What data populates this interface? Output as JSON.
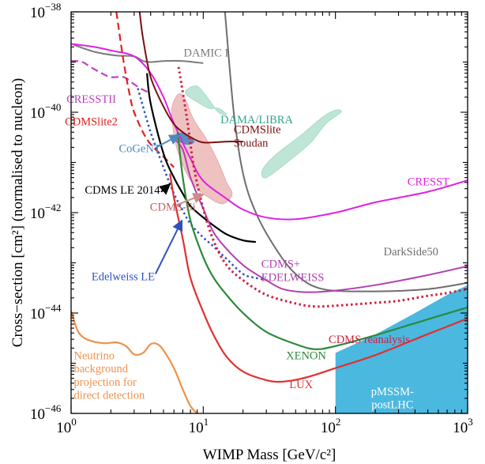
{
  "chart_data": {
    "type": "line",
    "xlabel": "WIMP Mass [GeV/c²]",
    "ylabel": "Cross−section [cm²] (normalised to nucleon)",
    "xscale": "log",
    "yscale": "log",
    "xlim": [
      1,
      1000
    ],
    "ylim": [
      1e-46,
      1e-38
    ],
    "xticks": [
      {
        "value": 1,
        "label": "10",
        "exp": "0"
      },
      {
        "value": 10,
        "label": "10",
        "exp": "1"
      },
      {
        "value": 100,
        "label": "10",
        "exp": "2"
      },
      {
        "value": 1000,
        "label": "10",
        "exp": "3"
      }
    ],
    "yticks": [
      {
        "value": 1e-46,
        "label": "10",
        "exp": "−46"
      },
      {
        "value": 1e-44,
        "label": "10",
        "exp": "−44"
      },
      {
        "value": 1e-42,
        "label": "10",
        "exp": "−42"
      },
      {
        "value": 1e-40,
        "label": "10",
        "exp": "−40"
      },
      {
        "value": 1e-38,
        "label": "10",
        "exp": "−38"
      }
    ],
    "grid": false,
    "series": [
      {
        "name": "DAMIC I",
        "color": "#7a7a7a",
        "style": "solid",
        "width": 2,
        "label_x": 10.5,
        "label_y": 1.3e-39,
        "label_anchor": "middle",
        "points": [
          [
            1.05,
            2.2e-39
          ],
          [
            1.5,
            1.6e-39
          ],
          [
            2.2,
            1.35e-39
          ],
          [
            3.0,
            1.3e-39
          ],
          [
            3.5,
            1.05e-39
          ],
          [
            4.0,
            1e-39
          ],
          [
            5,
            1.05e-39
          ],
          [
            7,
            1.05e-39
          ],
          [
            10,
            9.5e-40
          ]
        ]
      },
      {
        "name": "DarkSide50",
        "color": "#6e6e6e",
        "style": "solid",
        "width": 2,
        "label_x": 600,
        "label_y": 1.4e-43,
        "label_anchor": "end",
        "points": [
          [
            14.6,
            1e-38
          ],
          [
            17,
            1e-40
          ],
          [
            20,
            6e-42
          ],
          [
            25,
            1e-42
          ],
          [
            35,
            2e-43
          ],
          [
            50,
            6e-44
          ],
          [
            80,
            3e-44
          ],
          [
            200,
            2.7e-44
          ],
          [
            500,
            3e-44
          ],
          [
            1000,
            4e-44
          ]
        ]
      },
      {
        "name": "CRESST",
        "color": "#e020e0",
        "style": "solid",
        "width": 2,
        "label_x": 505,
        "label_y": 3.5e-42,
        "label_anchor": "middle",
        "points": [
          [
            1,
            2.3e-39
          ],
          [
            1.5,
            2e-39
          ],
          [
            2,
            1.7e-39
          ],
          [
            3,
            1.3e-39
          ],
          [
            4,
            6e-40
          ],
          [
            5,
            2e-40
          ],
          [
            6,
            6e-41
          ],
          [
            8,
            1.2e-41
          ],
          [
            10,
            4.3e-42
          ],
          [
            15,
            1.9e-42
          ],
          [
            20,
            1.15e-42
          ],
          [
            30,
            8e-43
          ],
          [
            50,
            7.4e-43
          ],
          [
            100,
            1e-42
          ],
          [
            200,
            1.6e-42
          ],
          [
            500,
            2.6e-42
          ],
          [
            1000,
            4.4e-42
          ]
        ]
      },
      {
        "name": "CRESSTII",
        "color": "#c040c0",
        "style": "dashed",
        "width": 2.2,
        "label_x": 1.42,
        "label_y": 1.55e-40,
        "label_anchor": "middle",
        "points": [
          [
            1,
            1.05e-39
          ],
          [
            1.2,
            1.02e-39
          ],
          [
            1.4,
            8e-40
          ],
          [
            1.7,
            6e-40
          ],
          [
            2,
            5e-40
          ],
          [
            2.5,
            5e-40
          ],
          [
            3,
            3.6e-40
          ],
          [
            3.5,
            2.8e-40
          ],
          [
            4,
            2.4e-40
          ]
        ]
      },
      {
        "name": "CDMSlite2",
        "color": "#e02020",
        "style": "dashed",
        "width": 2.2,
        "label_x": 1.42,
        "label_y": 5.5e-41,
        "label_anchor": "middle",
        "points": [
          [
            2.2,
            1e-38
          ],
          [
            2.5,
            1e-39
          ],
          [
            2.8,
            2e-40
          ],
          [
            3,
            1e-40
          ],
          [
            3.5,
            4e-41
          ],
          [
            4,
            2.3e-41
          ],
          [
            5,
            1.3e-41
          ],
          [
            6,
            8e-42
          ]
        ]
      },
      {
        "name": "CDMSlite Soudan",
        "color": "#7a1010",
        "style": "solid",
        "width": 2,
        "label_x": 17,
        "label_y": 3.8e-41,
        "label_anchor": "start",
        "label_line2": "Soudan",
        "points": [
          [
            3.3,
            1e-38
          ],
          [
            3.5,
            3e-39
          ],
          [
            4,
            5e-40
          ],
          [
            5,
            1.3e-40
          ],
          [
            6,
            5.8e-41
          ],
          [
            7,
            4e-41
          ],
          [
            8,
            3.2e-41
          ],
          [
            10,
            2.5e-41
          ],
          [
            15,
            2.6e-41
          ],
          [
            20,
            2.6e-41
          ]
        ]
      },
      {
        "name": "CDMS LE 2014",
        "color": "#000000",
        "style": "solid",
        "width": 2.2,
        "label_x": 4.7,
        "label_y": 2.4e-42,
        "label_anchor": "end",
        "points": [
          [
            3.75,
            6e-40
          ],
          [
            4,
            1.5e-40
          ],
          [
            5,
            1.5e-41
          ],
          [
            6,
            5e-42
          ],
          [
            7,
            2.4e-42
          ],
          [
            8,
            1.35e-42
          ],
          [
            10,
            8e-43
          ],
          [
            12,
            5.5e-43
          ],
          [
            15,
            3.7e-43
          ],
          [
            20,
            2.8e-43
          ],
          [
            25,
            2.6e-43
          ]
        ]
      },
      {
        "name": "Edelweiss LE",
        "color": "#3050c0",
        "style": "dotted",
        "width": 2.5,
        "label_x": 4.3,
        "label_y": 4.5e-44,
        "label_anchor": "end",
        "points": [
          [
            3.2,
            3e-40
          ],
          [
            4,
            4e-41
          ],
          [
            5,
            8e-42
          ],
          [
            6,
            2.4e-42
          ],
          [
            7,
            1.1e-42
          ],
          [
            8,
            6e-43
          ],
          [
            10,
            3.2e-43
          ],
          [
            12,
            2.1e-43
          ],
          [
            15,
            1.2e-43
          ],
          [
            20,
            6e-44
          ],
          [
            25,
            5e-44
          ],
          [
            30,
            4.6e-44
          ]
        ]
      },
      {
        "name": "CDMS+ EDELWEISS",
        "color": "#b040b0",
        "style": "solid",
        "width": 2,
        "label_x": 27.5,
        "label_y": 8e-44,
        "label_anchor": "start",
        "label_line2": "EDELWEISS",
        "points": [
          [
            6,
            3e-41
          ],
          [
            7,
            1.8e-41
          ],
          [
            8,
            5e-42
          ],
          [
            10,
            1.2e-42
          ],
          [
            12,
            4e-43
          ],
          [
            15,
            1.9e-43
          ],
          [
            20,
            9e-44
          ],
          [
            25,
            6e-44
          ],
          [
            30,
            4.5e-44
          ],
          [
            40,
            3e-44
          ],
          [
            60,
            2.6e-44
          ],
          [
            100,
            2.8e-44
          ],
          [
            200,
            3.6e-44
          ],
          [
            500,
            5.7e-44
          ],
          [
            1000,
            8.6e-44
          ]
        ]
      },
      {
        "name": "CDMS reanalysis",
        "color": "#d02040",
        "style": "dotted",
        "width": 3,
        "label_x": 180,
        "label_y": 2.5e-45,
        "label_anchor": "middle",
        "points": [
          [
            6.5,
            8e-40
          ],
          [
            7.5,
            8e-41
          ],
          [
            8.5,
            8e-42
          ],
          [
            10,
            1.2e-42
          ],
          [
            12,
            2.7e-43
          ],
          [
            15,
            9e-44
          ],
          [
            20,
            4.5e-44
          ],
          [
            30,
            2.3e-44
          ],
          [
            50,
            1.55e-44
          ],
          [
            70,
            1.35e-44
          ],
          [
            100,
            1.4e-44
          ],
          [
            200,
            1.6e-44
          ],
          [
            300,
            1.75e-44
          ],
          [
            500,
            2.2e-44
          ],
          [
            700,
            2.5e-44
          ],
          [
            1000,
            3e-44
          ]
        ]
      },
      {
        "name": "XENON",
        "color": "#2a8a3a",
        "style": "solid",
        "width": 2.2,
        "label_x": 60,
        "label_y": 1.2e-45,
        "label_anchor": "middle",
        "points": [
          [
            6.4,
            4e-41
          ],
          [
            7,
            5e-42
          ],
          [
            8,
            7e-43
          ],
          [
            10,
            1.3e-43
          ],
          [
            12,
            5e-44
          ],
          [
            15,
            2.3e-44
          ],
          [
            20,
            1e-44
          ],
          [
            30,
            4.2e-45
          ],
          [
            50,
            2.4e-45
          ],
          [
            70,
            1.9e-45
          ],
          [
            100,
            2.2e-45
          ],
          [
            200,
            3.6e-45
          ],
          [
            500,
            7.5e-45
          ],
          [
            1000,
            1.3e-44
          ]
        ]
      },
      {
        "name": "LUX",
        "color": "#e03030",
        "style": "solid",
        "width": 2.2,
        "label_x": 55,
        "label_y": 3.2e-46,
        "label_anchor": "middle",
        "points": [
          [
            5.6,
            6e-42
          ],
          [
            6,
            2e-42
          ],
          [
            7,
            3e-43
          ],
          [
            8,
            5e-44
          ],
          [
            10,
            1.05e-44
          ],
          [
            12,
            3.6e-45
          ],
          [
            15,
            1.35e-45
          ],
          [
            20,
            6.8e-46
          ],
          [
            30,
            4.6e-46
          ],
          [
            40,
            4.3e-46
          ],
          [
            60,
            5.2e-46
          ],
          [
            100,
            8e-46
          ],
          [
            200,
            1.45e-45
          ],
          [
            500,
            3.8e-45
          ],
          [
            1000,
            7.8e-45
          ]
        ]
      },
      {
        "name": "Neutrino background projection for direct detection",
        "color": "#f0904a",
        "style": "solid",
        "width": 2.2,
        "label_x": 1.05,
        "label_y": 1.2e-45,
        "label_anchor": "start",
        "label_lines": [
          "Neutrino",
          "background",
          "projection for",
          "direct detection"
        ],
        "points": [
          [
            1,
            1.1e-44
          ],
          [
            1.1,
            5e-45
          ],
          [
            1.2,
            3.5e-45
          ],
          [
            1.4,
            2.8e-45
          ],
          [
            1.8,
            2.5e-45
          ],
          [
            2.2,
            2.6e-45
          ],
          [
            2.6,
            2.2e-45
          ],
          [
            3,
            1.5e-45
          ],
          [
            3.5,
            1.6e-45
          ],
          [
            4,
            2.4e-45
          ],
          [
            4.5,
            2.4e-45
          ],
          [
            5,
            1.8e-45
          ],
          [
            6,
            8e-46
          ],
          [
            7,
            3e-46
          ],
          [
            8,
            1.4e-46
          ],
          [
            9,
            1e-46
          ]
        ]
      }
    ],
    "regions": [
      {
        "name": "DAMA/LIBRA",
        "color": "#a8dcc8",
        "opacity": 0.75,
        "label_color": "#2fa58a",
        "label_x": 13.5,
        "label_y": 6e-41,
        "polygon": [
          [
            7.5,
            2.8e-40
          ],
          [
            9,
            3.3e-40
          ],
          [
            11,
            1.8e-40
          ],
          [
            13,
            1e-40
          ],
          [
            15,
            9e-41
          ],
          [
            13,
            1.2e-40
          ],
          [
            11,
            1.2e-40
          ],
          [
            9,
            1.6e-40
          ],
          [
            7.5,
            2.2e-40
          ]
        ],
        "polygon2": [
          [
            30,
            5e-42
          ],
          [
            45,
            1.1e-41
          ],
          [
            65,
            2.5e-41
          ],
          [
            85,
            6e-41
          ],
          [
            110,
            1e-40
          ],
          [
            100,
            1.1e-40
          ],
          [
            80,
            8e-41
          ],
          [
            55,
            3.5e-41
          ],
          [
            35,
            1.4e-41
          ],
          [
            28,
            7e-42
          ]
        ]
      },
      {
        "name": "CDMS-Si",
        "color": "#e8a8a8",
        "opacity": 0.7,
        "label_color": "#c06060",
        "label_x": 3.95,
        "label_y": 1.1e-42,
        "polygon": [
          [
            5.8,
            1.2e-40
          ],
          [
            6.5,
            2.3e-40
          ],
          [
            7.3,
            1.8e-40
          ],
          [
            8.5,
            7e-41
          ],
          [
            10.5,
            3e-41
          ],
          [
            13,
            1e-41
          ],
          [
            15,
            4e-42
          ],
          [
            16.5,
            2.3e-42
          ],
          [
            14,
            1.5e-42
          ],
          [
            11,
            2e-42
          ],
          [
            9,
            3e-42
          ],
          [
            7.5,
            6e-42
          ],
          [
            6.5,
            1.5e-41
          ],
          [
            6,
            3.5e-41
          ]
        ]
      },
      {
        "name": "CoGeNT",
        "color": "#4a8abf",
        "opacity": 0.9,
        "label_color": "#4a8abf",
        "label_x": 2.3,
        "label_y": 1.6e-41,
        "polygon": [
          [
            6.2,
            3.5e-41
          ],
          [
            7,
            3.8e-41
          ],
          [
            8.5,
            2.6e-41
          ],
          [
            7.5,
            2.3e-41
          ],
          [
            6.5,
            2.7e-41
          ]
        ]
      },
      {
        "name": "pMSSM-postLHC",
        "color": "#4bb8e0",
        "opacity": 1.0,
        "label_color": "#ffffff",
        "label_x": 270,
        "label_y": 2.3e-46,
        "label_line2": "postLHC",
        "polygon": [
          [
            100,
            1e-46
          ],
          [
            100,
            1.6e-45
          ],
          [
            200,
            3.7e-45
          ],
          [
            400,
            1e-44
          ],
          [
            700,
            2.3e-44
          ],
          [
            1000,
            3.6e-44
          ],
          [
            1000,
            1e-46
          ]
        ]
      }
    ]
  }
}
